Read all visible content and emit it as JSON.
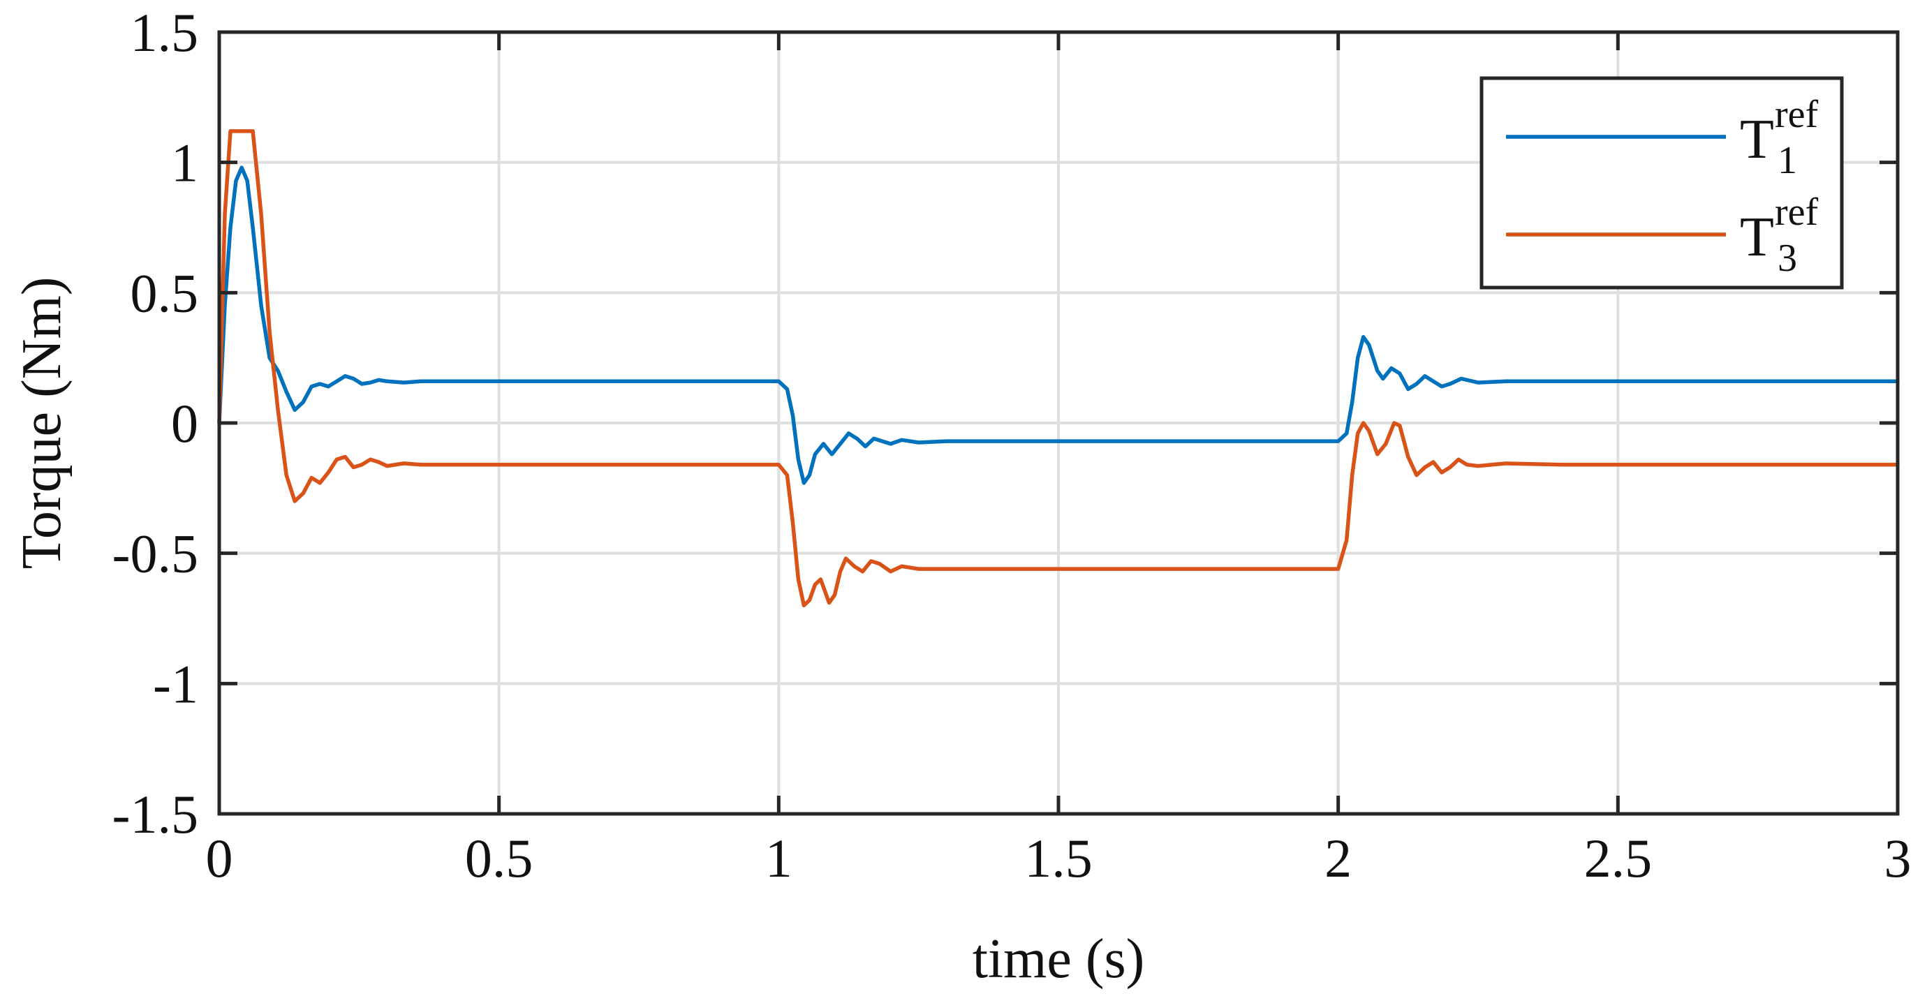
{
  "chart_data": {
    "type": "line",
    "xlabel": "time (s)",
    "ylabel": "Torque (Nm)",
    "xlim": [
      0,
      3
    ],
    "ylim": [
      -1.5,
      1.5
    ],
    "xticks": [
      0,
      0.5,
      1,
      1.5,
      2,
      2.5,
      3
    ],
    "yticks": [
      -1.5,
      -1,
      -0.5,
      0,
      0.5,
      1,
      1.5
    ],
    "xtick_labels": [
      "0",
      "0.5",
      "1",
      "1.5",
      "2",
      "2.5",
      "3"
    ],
    "ytick_labels": [
      "-1.5",
      "-1",
      "-0.5",
      "0",
      "0.5",
      "1",
      "1.5"
    ],
    "grid": true,
    "legend_position": "top-right",
    "series": [
      {
        "name": "T1ref",
        "label_base": "T",
        "label_sub": "1",
        "label_sup": "ref",
        "color": "#0072BD",
        "points": [
          [
            0,
            0
          ],
          [
            0.01,
            0.45
          ],
          [
            0.02,
            0.75
          ],
          [
            0.03,
            0.93
          ],
          [
            0.04,
            0.98
          ],
          [
            0.05,
            0.93
          ],
          [
            0.06,
            0.75
          ],
          [
            0.075,
            0.45
          ],
          [
            0.09,
            0.25
          ],
          [
            0.105,
            0.2
          ],
          [
            0.12,
            0.12
          ],
          [
            0.135,
            0.05
          ],
          [
            0.15,
            0.08
          ],
          [
            0.165,
            0.14
          ],
          [
            0.18,
            0.15
          ],
          [
            0.195,
            0.14
          ],
          [
            0.21,
            0.16
          ],
          [
            0.225,
            0.18
          ],
          [
            0.24,
            0.17
          ],
          [
            0.255,
            0.15
          ],
          [
            0.27,
            0.155
          ],
          [
            0.285,
            0.165
          ],
          [
            0.3,
            0.16
          ],
          [
            0.33,
            0.155
          ],
          [
            0.36,
            0.16
          ],
          [
            0.4,
            0.16
          ],
          [
            1.0,
            0.16
          ],
          [
            1.015,
            0.13
          ],
          [
            1.025,
            0.03
          ],
          [
            1.035,
            -0.14
          ],
          [
            1.045,
            -0.23
          ],
          [
            1.055,
            -0.2
          ],
          [
            1.065,
            -0.12
          ],
          [
            1.08,
            -0.08
          ],
          [
            1.095,
            -0.12
          ],
          [
            1.11,
            -0.08
          ],
          [
            1.125,
            -0.04
          ],
          [
            1.14,
            -0.06
          ],
          [
            1.155,
            -0.09
          ],
          [
            1.17,
            -0.06
          ],
          [
            1.185,
            -0.07
          ],
          [
            1.2,
            -0.08
          ],
          [
            1.22,
            -0.065
          ],
          [
            1.25,
            -0.075
          ],
          [
            1.3,
            -0.07
          ],
          [
            1.4,
            -0.07
          ],
          [
            2.0,
            -0.07
          ],
          [
            2.015,
            -0.04
          ],
          [
            2.025,
            0.08
          ],
          [
            2.035,
            0.25
          ],
          [
            2.045,
            0.33
          ],
          [
            2.055,
            0.3
          ],
          [
            2.07,
            0.2
          ],
          [
            2.08,
            0.17
          ],
          [
            2.095,
            0.21
          ],
          [
            2.11,
            0.19
          ],
          [
            2.125,
            0.13
          ],
          [
            2.14,
            0.15
          ],
          [
            2.155,
            0.18
          ],
          [
            2.17,
            0.16
          ],
          [
            2.185,
            0.14
          ],
          [
            2.2,
            0.15
          ],
          [
            2.22,
            0.17
          ],
          [
            2.25,
            0.155
          ],
          [
            2.3,
            0.16
          ],
          [
            2.4,
            0.16
          ],
          [
            3.0,
            0.16
          ]
        ]
      },
      {
        "name": "T3ref",
        "label_base": "T",
        "label_sub": "3",
        "label_sup": "ref",
        "color": "#D95319",
        "points": [
          [
            0,
            0
          ],
          [
            0.01,
            0.8
          ],
          [
            0.02,
            1.12
          ],
          [
            0.06,
            1.12
          ],
          [
            0.075,
            0.8
          ],
          [
            0.09,
            0.35
          ],
          [
            0.105,
            0.05
          ],
          [
            0.12,
            -0.2
          ],
          [
            0.135,
            -0.3
          ],
          [
            0.15,
            -0.27
          ],
          [
            0.165,
            -0.21
          ],
          [
            0.18,
            -0.23
          ],
          [
            0.195,
            -0.19
          ],
          [
            0.21,
            -0.14
          ],
          [
            0.225,
            -0.13
          ],
          [
            0.24,
            -0.17
          ],
          [
            0.255,
            -0.16
          ],
          [
            0.27,
            -0.14
          ],
          [
            0.285,
            -0.15
          ],
          [
            0.3,
            -0.165
          ],
          [
            0.33,
            -0.155
          ],
          [
            0.36,
            -0.16
          ],
          [
            0.4,
            -0.16
          ],
          [
            1.0,
            -0.16
          ],
          [
            1.015,
            -0.2
          ],
          [
            1.025,
            -0.38
          ],
          [
            1.035,
            -0.6
          ],
          [
            1.045,
            -0.7
          ],
          [
            1.055,
            -0.68
          ],
          [
            1.065,
            -0.62
          ],
          [
            1.075,
            -0.6
          ],
          [
            1.09,
            -0.69
          ],
          [
            1.1,
            -0.66
          ],
          [
            1.11,
            -0.57
          ],
          [
            1.12,
            -0.52
          ],
          [
            1.135,
            -0.55
          ],
          [
            1.15,
            -0.57
          ],
          [
            1.165,
            -0.53
          ],
          [
            1.18,
            -0.54
          ],
          [
            1.2,
            -0.57
          ],
          [
            1.22,
            -0.55
          ],
          [
            1.25,
            -0.56
          ],
          [
            1.3,
            -0.56
          ],
          [
            2.0,
            -0.56
          ],
          [
            2.015,
            -0.45
          ],
          [
            2.025,
            -0.2
          ],
          [
            2.035,
            -0.04
          ],
          [
            2.045,
            0.0
          ],
          [
            2.055,
            -0.03
          ],
          [
            2.07,
            -0.12
          ],
          [
            2.085,
            -0.08
          ],
          [
            2.1,
            0.0
          ],
          [
            2.11,
            -0.01
          ],
          [
            2.125,
            -0.13
          ],
          [
            2.14,
            -0.2
          ],
          [
            2.155,
            -0.17
          ],
          [
            2.17,
            -0.15
          ],
          [
            2.185,
            -0.19
          ],
          [
            2.2,
            -0.17
          ],
          [
            2.215,
            -0.14
          ],
          [
            2.23,
            -0.16
          ],
          [
            2.25,
            -0.165
          ],
          [
            2.3,
            -0.155
          ],
          [
            2.4,
            -0.16
          ],
          [
            3.0,
            -0.16
          ]
        ]
      }
    ]
  }
}
